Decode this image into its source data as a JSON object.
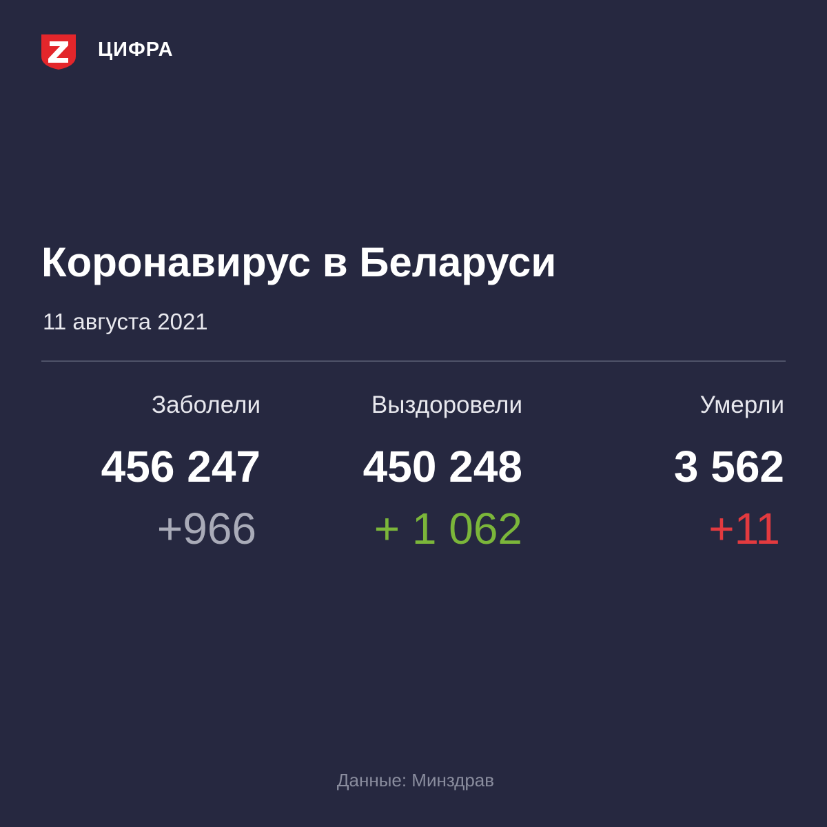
{
  "header": {
    "brand": "ЦИФРА"
  },
  "title": "Коронавирус в Беларуси",
  "date": "11 августа 2021",
  "stats": [
    {
      "label": "Заболели",
      "total": "456 247",
      "delta": "+966"
    },
    {
      "label": "Выздоровели",
      "total": "450 248",
      "delta": "+ 1 062"
    },
    {
      "label": "Умерли",
      "total": "3 562",
      "delta": "+11"
    }
  ],
  "source": "Данные: Минздрав"
}
